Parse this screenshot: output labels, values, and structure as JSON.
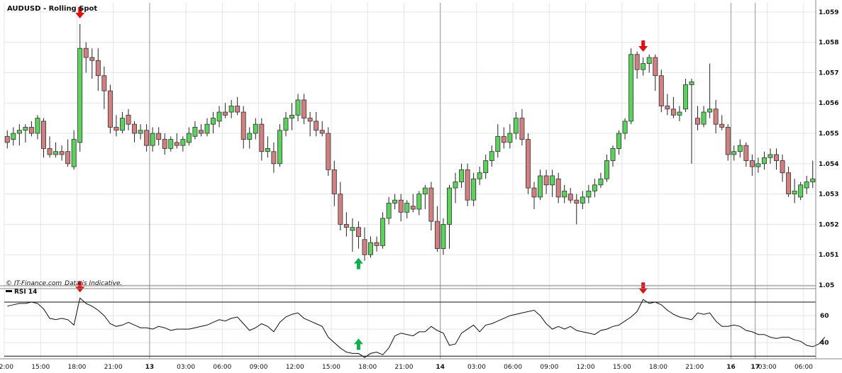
{
  "colors": {
    "up": "#5cd15c",
    "down": "#d08080",
    "wick": "#222222",
    "arrow_down": "#e01010",
    "arrow_up": "#10b050",
    "grid": "#e4e4e4",
    "day_line": "#999999"
  },
  "chart_data": {
    "type": "candlestick",
    "title": "AUDUSD - Rolling Spot",
    "copyright": "© IT-Finance.com",
    "disclaimer": "Data is Indicative.",
    "ylim": [
      1.05,
      1.0593
    ],
    "yticks": [
      "1.059",
      "1.058",
      "1.057",
      "1.056",
      "1.055",
      "1.054",
      "1.053",
      "1.052",
      "1.051",
      "1.05"
    ],
    "xticks": [
      {
        "i": 0,
        "label": "12:00",
        "major": false
      },
      {
        "i": 6,
        "label": "15:00",
        "major": false
      },
      {
        "i": 12,
        "label": "18:00",
        "major": false
      },
      {
        "i": 18,
        "label": "21:00",
        "major": false
      },
      {
        "i": 24,
        "label": "13",
        "major": true
      },
      {
        "i": 30,
        "label": "03:00",
        "major": false
      },
      {
        "i": 36,
        "label": "06:00",
        "major": false
      },
      {
        "i": 42,
        "label": "09:00",
        "major": false
      },
      {
        "i": 48,
        "label": "12:00",
        "major": false
      },
      {
        "i": 54,
        "label": "15:00",
        "major": false
      },
      {
        "i": 60,
        "label": "18:00",
        "major": false
      },
      {
        "i": 66,
        "label": "21:00",
        "major": false
      },
      {
        "i": 72,
        "label": "14",
        "major": true
      },
      {
        "i": 78,
        "label": "03:00",
        "major": false
      },
      {
        "i": 84,
        "label": "06:00",
        "major": false
      },
      {
        "i": 90,
        "label": "09:00",
        "major": false
      },
      {
        "i": 96,
        "label": "12:00",
        "major": false
      },
      {
        "i": 102,
        "label": "15:00",
        "major": false
      },
      {
        "i": 108,
        "label": "18:00",
        "major": false
      },
      {
        "i": 114,
        "label": "21:00",
        "major": false
      },
      {
        "i": 120,
        "label": "16",
        "major": true
      },
      {
        "i": 124,
        "label": "17",
        "major": true
      },
      {
        "i": 126,
        "label": "03:00",
        "major": false
      },
      {
        "i": 132,
        "label": "06:00",
        "major": false
      }
    ],
    "day_separators": [
      24,
      72,
      120,
      124
    ],
    "candles": [
      [
        1.0549,
        1.0551,
        1.0545,
        1.0547
      ],
      [
        1.0548,
        1.0552,
        1.0546,
        1.055
      ],
      [
        1.055,
        1.0553,
        1.0546,
        1.0551
      ],
      [
        1.0551,
        1.0553,
        1.0547,
        1.0552
      ],
      [
        1.0552,
        1.0554,
        1.0549,
        1.055
      ],
      [
        1.055,
        1.0556,
        1.0548,
        1.0555
      ],
      [
        1.0554,
        1.0555,
        1.0542,
        1.0545
      ],
      [
        1.0545,
        1.0549,
        1.0542,
        1.0543
      ],
      [
        1.0543,
        1.0547,
        1.0542,
        1.0544
      ],
      [
        1.0544,
        1.0546,
        1.0541,
        1.0543
      ],
      [
        1.0544,
        1.0548,
        1.0539,
        1.054
      ],
      [
        1.0539,
        1.0551,
        1.0538,
        1.0548
      ],
      [
        1.0547,
        1.0586,
        1.0544,
        1.0578
      ],
      [
        1.0578,
        1.058,
        1.057,
        1.0575
      ],
      [
        1.0575,
        1.0578,
        1.0568,
        1.0574
      ],
      [
        1.0574,
        1.0578,
        1.0564,
        1.0569
      ],
      [
        1.0569,
        1.0572,
        1.0558,
        1.0564
      ],
      [
        1.0564,
        1.0566,
        1.055,
        1.0552
      ],
      [
        1.0552,
        1.0556,
        1.0549,
        1.0551
      ],
      [
        1.0551,
        1.0557,
        1.055,
        1.0555
      ],
      [
        1.0556,
        1.0558,
        1.0551,
        1.0553
      ],
      [
        1.0553,
        1.0554,
        1.0547,
        1.055
      ],
      [
        1.055,
        1.0553,
        1.0548,
        1.0551
      ],
      [
        1.0551,
        1.0553,
        1.0544,
        1.0546
      ],
      [
        1.0546,
        1.0552,
        1.0544,
        1.055
      ],
      [
        1.055,
        1.0552,
        1.0546,
        1.0548
      ],
      [
        1.0548,
        1.055,
        1.0543,
        1.0545
      ],
      [
        1.0545,
        1.0549,
        1.0544,
        1.0548
      ],
      [
        1.0547,
        1.055,
        1.0545,
        1.0546
      ],
      [
        1.0546,
        1.0549,
        1.0544,
        1.0548
      ],
      [
        1.0547,
        1.0552,
        1.0546,
        1.055
      ],
      [
        1.0549,
        1.0554,
        1.0548,
        1.0552
      ],
      [
        1.0551,
        1.0553,
        1.0549,
        1.055
      ],
      [
        1.055,
        1.0555,
        1.0549,
        1.0553
      ],
      [
        1.0553,
        1.0557,
        1.055,
        1.0555
      ],
      [
        1.0554,
        1.0559,
        1.0552,
        1.0557
      ],
      [
        1.0557,
        1.056,
        1.0555,
        1.0556
      ],
      [
        1.0557,
        1.0561,
        1.0555,
        1.0559
      ],
      [
        1.0559,
        1.0562,
        1.0556,
        1.0557
      ],
      [
        1.0557,
        1.0559,
        1.0545,
        1.0548
      ],
      [
        1.0548,
        1.0552,
        1.0545,
        1.055
      ],
      [
        1.055,
        1.0555,
        1.0548,
        1.0553
      ],
      [
        1.0553,
        1.0555,
        1.0541,
        1.0544
      ],
      [
        1.0544,
        1.0549,
        1.0542,
        1.0545
      ],
      [
        1.0544,
        1.0547,
        1.0537,
        1.054
      ],
      [
        1.054,
        1.0553,
        1.0539,
        1.0551
      ],
      [
        1.0551,
        1.0557,
        1.0549,
        1.0555
      ],
      [
        1.0555,
        1.056,
        1.0551,
        1.0556
      ],
      [
        1.0556,
        1.0563,
        1.0554,
        1.0561
      ],
      [
        1.0561,
        1.0563,
        1.0553,
        1.0555
      ],
      [
        1.0555,
        1.0557,
        1.0549,
        1.0554
      ],
      [
        1.0554,
        1.0557,
        1.0549,
        1.0551
      ],
      [
        1.0551,
        1.0554,
        1.0549,
        1.055
      ],
      [
        1.055,
        1.0552,
        1.0536,
        1.0538
      ],
      [
        1.0538,
        1.0541,
        1.0526,
        1.053
      ],
      [
        1.053,
        1.0534,
        1.0518,
        1.052
      ],
      [
        1.052,
        1.0524,
        1.0516,
        1.0519
      ],
      [
        1.0518,
        1.0522,
        1.0511,
        1.0519
      ],
      [
        1.0519,
        1.0521,
        1.0512,
        1.0516
      ],
      [
        1.0515,
        1.0519,
        1.0508,
        1.051
      ],
      [
        1.051,
        1.0516,
        1.0509,
        1.0514
      ],
      [
        1.0514,
        1.0516,
        1.0511,
        1.0513
      ],
      [
        1.0513,
        1.0524,
        1.0512,
        1.0522
      ],
      [
        1.0522,
        1.0529,
        1.052,
        1.0527
      ],
      [
        1.0527,
        1.053,
        1.0525,
        1.0528
      ],
      [
        1.0528,
        1.053,
        1.0521,
        1.0524
      ],
      [
        1.0524,
        1.0528,
        1.0522,
        1.0527
      ],
      [
        1.0526,
        1.053,
        1.0524,
        1.0525
      ],
      [
        1.0525,
        1.0531,
        1.0523,
        1.053
      ],
      [
        1.053,
        1.0533,
        1.0525,
        1.0532
      ],
      [
        1.0532,
        1.0534,
        1.0518,
        1.0521
      ],
      [
        1.0521,
        1.0526,
        1.0511,
        1.0512
      ],
      [
        1.0512,
        1.0522,
        1.051,
        1.052
      ],
      [
        1.052,
        1.0533,
        1.0512,
        1.0532
      ],
      [
        1.0532,
        1.0537,
        1.0527,
        1.0534
      ],
      [
        1.0534,
        1.054,
        1.0532,
        1.0538
      ],
      [
        1.0538,
        1.054,
        1.0526,
        1.0528
      ],
      [
        1.0528,
        1.0537,
        1.0526,
        1.0535
      ],
      [
        1.0535,
        1.0539,
        1.0533,
        1.0537
      ],
      [
        1.0537,
        1.0543,
        1.0535,
        1.0541
      ],
      [
        1.0541,
        1.0546,
        1.0539,
        1.0544
      ],
      [
        1.0544,
        1.0553,
        1.0542,
        1.0549
      ],
      [
        1.0549,
        1.0552,
        1.0545,
        1.0547
      ],
      [
        1.0547,
        1.0553,
        1.0545,
        1.055
      ],
      [
        1.055,
        1.0557,
        1.0548,
        1.0555
      ],
      [
        1.0555,
        1.0558,
        1.0546,
        1.0548
      ],
      [
        1.0548,
        1.055,
        1.053,
        1.0532
      ],
      [
        1.0532,
        1.0534,
        1.0525,
        1.0529
      ],
      [
        1.0529,
        1.0538,
        1.0528,
        1.0536
      ],
      [
        1.0536,
        1.0538,
        1.053,
        1.0533
      ],
      [
        1.0533,
        1.0538,
        1.0529,
        1.0536
      ],
      [
        1.0535,
        1.0537,
        1.0527,
        1.0529
      ],
      [
        1.0529,
        1.0533,
        1.0527,
        1.0531
      ],
      [
        1.053,
        1.0532,
        1.0527,
        1.0528
      ],
      [
        1.0528,
        1.053,
        1.052,
        1.0527
      ],
      [
        1.0527,
        1.0531,
        1.0525,
        1.0529
      ],
      [
        1.0529,
        1.0533,
        1.0527,
        1.0531
      ],
      [
        1.0531,
        1.0535,
        1.0529,
        1.0533
      ],
      [
        1.0533,
        1.0537,
        1.0532,
        1.0535
      ],
      [
        1.0535,
        1.0543,
        1.0534,
        1.0541
      ],
      [
        1.0541,
        1.0546,
        1.0539,
        1.0545
      ],
      [
        1.0545,
        1.0551,
        1.0543,
        1.055
      ],
      [
        1.055,
        1.0555,
        1.0548,
        1.0554
      ],
      [
        1.0554,
        1.0578,
        1.0553,
        1.0576
      ],
      [
        1.0576,
        1.0577,
        1.0568,
        1.0571
      ],
      [
        1.0571,
        1.0575,
        1.0569,
        1.0573
      ],
      [
        1.0573,
        1.0576,
        1.057,
        1.0575
      ],
      [
        1.0575,
        1.0576,
        1.0564,
        1.0569
      ],
      [
        1.0569,
        1.0571,
        1.0557,
        1.0559
      ],
      [
        1.0559,
        1.0563,
        1.0556,
        1.0558
      ],
      [
        1.0558,
        1.0562,
        1.0555,
        1.0556
      ],
      [
        1.0556,
        1.0559,
        1.0554,
        1.0557
      ],
      [
        1.0558,
        1.0568,
        1.0557,
        1.0566
      ],
      [
        1.0566,
        1.0568,
        1.054,
        1.0567
      ],
      [
        1.0555,
        1.0559,
        1.0551,
        1.0553
      ],
      [
        1.0553,
        1.0559,
        1.0552,
        1.0557
      ],
      [
        1.0557,
        1.0573,
        1.0555,
        1.0558
      ],
      [
        1.0558,
        1.0561,
        1.055,
        1.0553
      ],
      [
        1.0553,
        1.0556,
        1.0551,
        1.0552
      ],
      [
        1.0552,
        1.0553,
        1.0541,
        1.0543
      ],
      [
        1.0543,
        1.0546,
        1.0541,
        1.0544
      ],
      [
        1.0544,
        1.0548,
        1.0542,
        1.0546
      ],
      [
        1.0546,
        1.0547,
        1.0539,
        1.0541
      ],
      [
        1.0541,
        1.0543,
        1.0536,
        1.0539
      ],
      [
        1.0539,
        1.0542,
        1.0537,
        1.054
      ],
      [
        1.054,
        1.0544,
        1.0538,
        1.0542
      ],
      [
        1.0542,
        1.0545,
        1.054,
        1.0543
      ],
      [
        1.0543,
        1.0545,
        1.0538,
        1.0541
      ],
      [
        1.0541,
        1.0543,
        1.0534,
        1.0537
      ],
      [
        1.0537,
        1.0539,
        1.0529,
        1.053
      ],
      [
        1.053,
        1.0535,
        1.0527,
        1.0531
      ],
      [
        1.0529,
        1.0534,
        1.0528,
        1.0533
      ],
      [
        1.0532,
        1.0536,
        1.053,
        1.0534
      ],
      [
        1.0534,
        1.0541,
        1.0532,
        1.0535
      ]
    ],
    "arrows": [
      {
        "i": 12,
        "kind": "down"
      },
      {
        "i": 58,
        "kind": "up"
      },
      {
        "i": 105,
        "kind": "down"
      }
    ],
    "rsi": {
      "label": "RSI 14",
      "ylim": [
        28,
        80
      ],
      "levels": [
        70,
        30
      ],
      "yticks": [
        60,
        40
      ],
      "values": [
        67,
        68,
        69,
        69,
        70,
        69,
        65,
        58,
        57,
        58,
        57,
        53,
        73,
        69,
        67,
        64,
        60,
        54,
        52,
        53,
        55,
        53,
        51,
        51,
        50,
        52,
        51,
        49,
        50,
        50,
        50,
        51,
        52,
        53,
        55,
        57,
        56,
        58,
        59,
        54,
        49,
        51,
        54,
        52,
        48,
        55,
        59,
        61,
        62,
        58,
        56,
        54,
        52,
        44,
        40,
        36,
        33,
        32,
        32,
        29,
        32,
        33,
        31,
        36,
        45,
        47,
        46,
        45,
        48,
        48,
        52,
        49,
        47,
        38,
        39,
        47,
        50,
        53,
        48,
        53,
        54,
        56,
        58,
        60,
        61,
        62,
        63,
        64,
        60,
        54,
        50,
        52,
        50,
        52,
        49,
        48,
        47,
        46,
        49,
        50,
        52,
        53,
        56,
        59,
        63,
        72,
        69,
        70,
        68,
        64,
        61,
        59,
        58,
        57,
        62,
        61,
        62,
        56,
        52,
        52,
        53,
        52,
        49,
        48,
        46,
        46,
        44,
        43,
        44,
        44,
        42,
        41,
        38,
        37,
        39,
        44
      ]
    }
  }
}
